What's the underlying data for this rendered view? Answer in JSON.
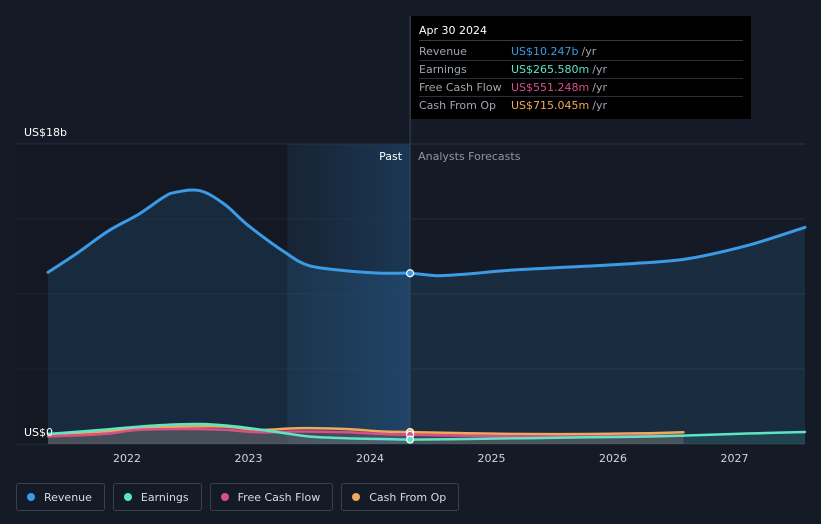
{
  "chart_data": {
    "type": "area",
    "y_axis": {
      "top_label": "US$18b",
      "bottom_label": "US$0",
      "ylim": [
        0,
        18
      ]
    },
    "x_ticks": [
      "2022",
      "2023",
      "2024",
      "2025",
      "2026",
      "2027"
    ],
    "xlim": [
      2021.35,
      2027.58
    ],
    "divider_x": 2024.33,
    "region_labels": {
      "past": "Past",
      "forecast": "Analysts Forecasts"
    },
    "series": [
      {
        "name": "Revenue",
        "color": "#3b9be6",
        "x": [
          2021.35,
          2021.6,
          2021.85,
          2022.1,
          2022.3,
          2022.4,
          2022.6,
          2022.8,
          2023.0,
          2023.3,
          2023.5,
          2023.8,
          2024.1,
          2024.33,
          2024.55,
          2024.8,
          2025.1,
          2025.6,
          2026.1,
          2026.6,
          2027.1,
          2027.58
        ],
        "values": [
          10.3,
          11.5,
          12.8,
          13.8,
          14.8,
          15.1,
          15.2,
          14.4,
          13.1,
          11.5,
          10.7,
          10.4,
          10.25,
          10.247,
          10.1,
          10.2,
          10.4,
          10.6,
          10.8,
          11.1,
          11.9,
          13.0
        ]
      },
      {
        "name": "Earnings",
        "color": "#5ce5c6",
        "x": [
          2021.35,
          2021.8,
          2022.2,
          2022.6,
          2022.9,
          2023.2,
          2023.5,
          2023.8,
          2024.1,
          2024.33,
          2024.8,
          2025.3,
          2025.8,
          2026.3,
          2026.8,
          2027.2,
          2027.58
        ],
        "values": [
          0.6,
          0.85,
          1.1,
          1.2,
          1.05,
          0.75,
          0.45,
          0.35,
          0.3,
          0.266,
          0.3,
          0.35,
          0.4,
          0.45,
          0.55,
          0.65,
          0.72
        ]
      },
      {
        "name": "Free Cash Flow",
        "color": "#d94f8a",
        "x": [
          2021.35,
          2021.8,
          2022.1,
          2022.5,
          2022.8,
          2023.1,
          2023.4,
          2023.8,
          2024.1,
          2024.33,
          2024.8,
          2025.3,
          2025.8,
          2026.3,
          2026.58
        ],
        "values": [
          0.45,
          0.6,
          0.85,
          0.9,
          0.85,
          0.7,
          0.75,
          0.7,
          0.6,
          0.551,
          0.5,
          0.45,
          0.45,
          0.5,
          0.5
        ]
      },
      {
        "name": "Cash From Op",
        "color": "#f0a95a",
        "x": [
          2021.35,
          2021.8,
          2022.1,
          2022.5,
          2022.8,
          2023.1,
          2023.4,
          2023.8,
          2024.1,
          2024.33,
          2024.8,
          2025.3,
          2025.8,
          2026.3,
          2026.58
        ],
        "values": [
          0.6,
          0.75,
          0.95,
          1.05,
          1.05,
          0.85,
          0.95,
          0.9,
          0.75,
          0.715,
          0.65,
          0.6,
          0.6,
          0.65,
          0.7
        ]
      }
    ],
    "tooltip": {
      "date": "Apr 30 2024",
      "rows": [
        {
          "label": "Revenue",
          "value": "US$10.247b",
          "unit": "/yr",
          "color": "#3b9be6"
        },
        {
          "label": "Earnings",
          "value": "US$265.580m",
          "unit": "/yr",
          "color": "#5ce5c6"
        },
        {
          "label": "Free Cash Flow",
          "value": "US$551.248m",
          "unit": "/yr",
          "color": "#d94f8a"
        },
        {
          "label": "Cash From Op",
          "value": "US$715.045m",
          "unit": "/yr",
          "color": "#f0a95a"
        }
      ]
    },
    "legend": [
      {
        "label": "Revenue",
        "color": "#3b9be6"
      },
      {
        "label": "Earnings",
        "color": "#5ce5c6"
      },
      {
        "label": "Free Cash Flow",
        "color": "#d94f8a"
      },
      {
        "label": "Cash From Op",
        "color": "#f0a95a"
      }
    ]
  }
}
